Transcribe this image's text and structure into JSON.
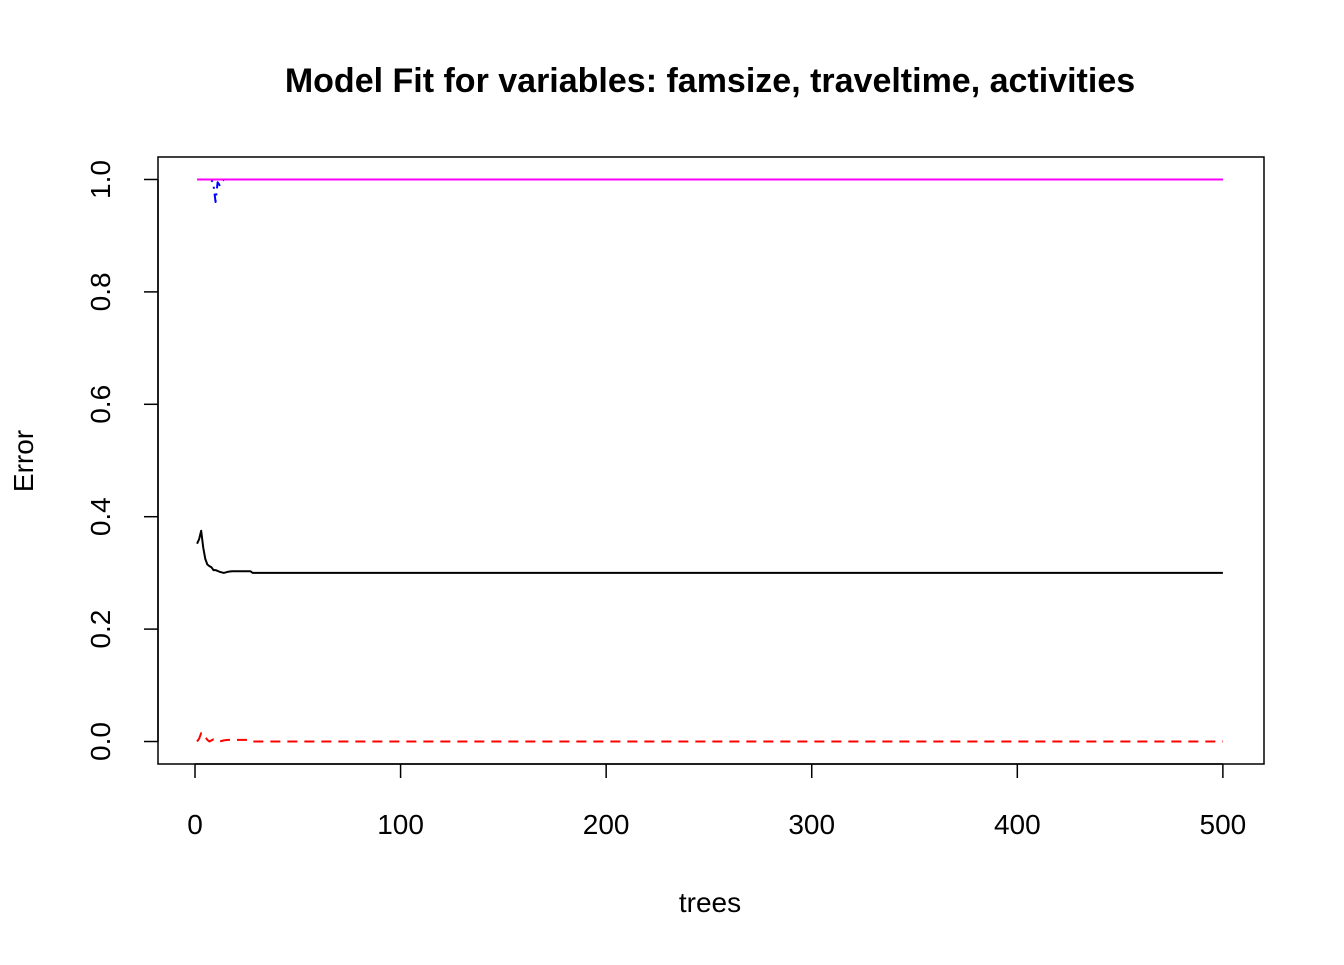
{
  "chart_data": {
    "type": "line",
    "title": "Model Fit for variables: famsize, traveltime, activities",
    "xlabel": "trees",
    "ylabel": "Error",
    "xlim": [
      -18,
      520
    ],
    "ylim": [
      -0.04,
      1.04
    ],
    "xticks": [
      0,
      100,
      200,
      300,
      400,
      500
    ],
    "xtick_labels": [
      "0",
      "100",
      "200",
      "300",
      "400",
      "500"
    ],
    "yticks": [
      0.0,
      0.2,
      0.4,
      0.6,
      0.8,
      1.0
    ],
    "ytick_labels": [
      "0.0",
      "0.2",
      "0.4",
      "0.6",
      "0.8",
      "1.0"
    ],
    "grid": false,
    "legend": "none",
    "series": [
      {
        "color": "#000000",
        "dash": "solid",
        "x": [
          1,
          2,
          3,
          4,
          5,
          6,
          7,
          8,
          9,
          10,
          12,
          14,
          16,
          18,
          20,
          25,
          27,
          28,
          30,
          50,
          100,
          200,
          300,
          400,
          500
        ],
        "y": [
          0.352,
          0.36,
          0.375,
          0.345,
          0.325,
          0.315,
          0.312,
          0.31,
          0.305,
          0.305,
          0.302,
          0.3,
          0.302,
          0.303,
          0.303,
          0.303,
          0.303,
          0.3,
          0.3,
          0.3,
          0.3,
          0.3,
          0.3,
          0.3,
          0.3
        ]
      },
      {
        "color": "#FF0000",
        "dash": "dashed",
        "x": [
          1,
          2,
          3,
          4,
          5,
          6,
          7,
          8,
          9,
          10,
          11,
          12,
          14,
          16,
          18,
          20,
          25,
          27,
          28,
          30,
          100,
          200,
          300,
          400,
          500
        ],
        "y": [
          0.0,
          0.005,
          0.015,
          0.015,
          0.008,
          0.003,
          0.0,
          0.002,
          0.004,
          0.004,
          0.002,
          0.0,
          0.002,
          0.003,
          0.003,
          0.003,
          0.003,
          0.003,
          0.0,
          0.0,
          0.0,
          0.0,
          0.0,
          0.0,
          0.0
        ]
      },
      {
        "color": "#0000FF",
        "dash": "dotdash",
        "x": [
          1,
          5,
          8,
          9,
          10,
          11,
          12,
          14,
          20,
          100,
          200,
          300,
          400,
          500
        ],
        "y": [
          1.0,
          1.0,
          1.0,
          0.99,
          0.96,
          0.995,
          0.99,
          1.0,
          1.0,
          1.0,
          1.0,
          1.0,
          1.0,
          1.0
        ]
      },
      {
        "color": "#FF00FF",
        "dash": "solid",
        "x": [
          1,
          100,
          200,
          300,
          400,
          500
        ],
        "y": [
          1.0,
          1.0,
          1.0,
          1.0,
          1.0,
          1.0
        ]
      }
    ]
  }
}
